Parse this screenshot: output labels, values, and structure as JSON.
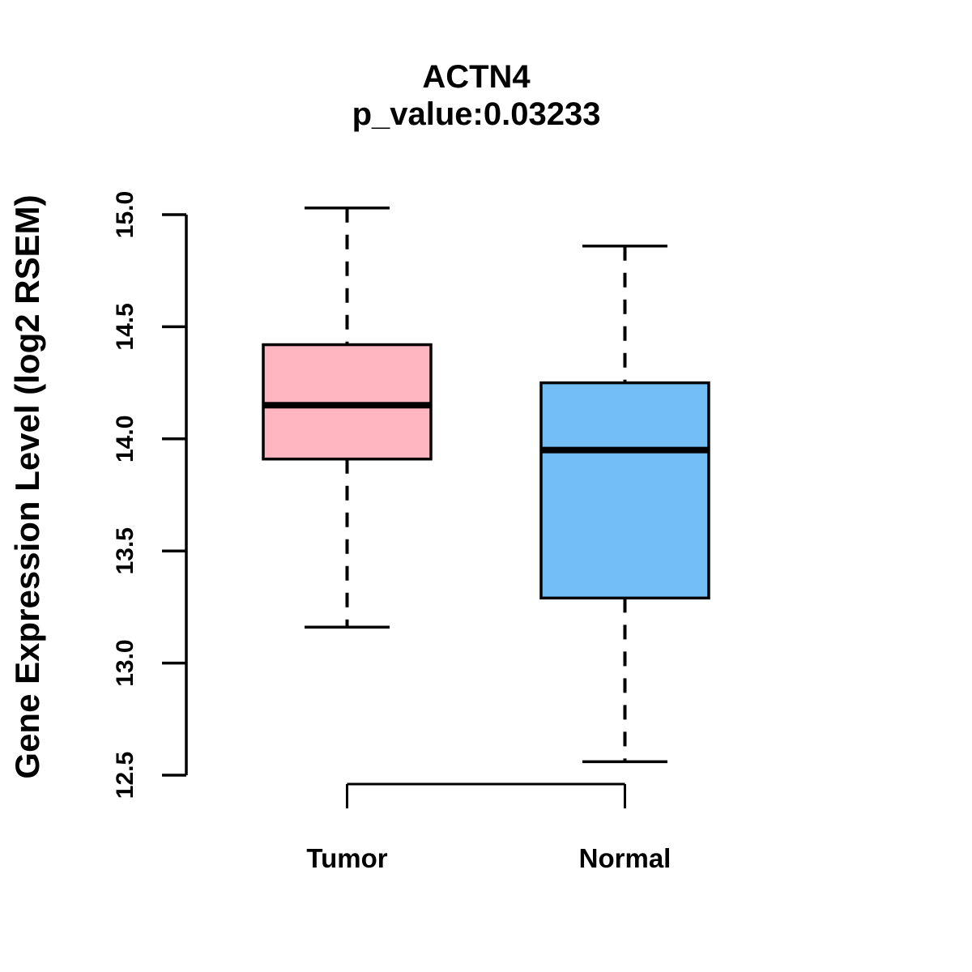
{
  "title": "ACTN4",
  "subtitle": "p_value:0.03233",
  "ylabel": "Gene Expression Level (log2 RSEM)",
  "colors": {
    "stroke": "#000000",
    "background": "#FFFFFF",
    "tumor_fill": "#FFB6C1",
    "normal_fill": "#74BEF6"
  },
  "chart_data": {
    "type": "boxplot",
    "title": "ACTN4",
    "subtitle": "p_value:0.03233",
    "ylabel": "Gene Expression Level (log2 RSEM)",
    "xlabel": "",
    "categories": [
      "Tumor",
      "Normal"
    ],
    "ylim": [
      12.5,
      15.0
    ],
    "yticks": [
      12.5,
      13.0,
      13.5,
      14.0,
      14.5,
      15.0
    ],
    "grid": false,
    "legend_position": "none",
    "series": [
      {
        "name": "Tumor",
        "color": "#FFB6C1",
        "whisker_low": 13.16,
        "q1": 13.91,
        "median": 14.15,
        "q3": 14.42,
        "whisker_high": 15.03
      },
      {
        "name": "Normal",
        "color": "#74BEF6",
        "whisker_low": 12.56,
        "q1": 13.29,
        "median": 13.95,
        "q3": 14.25,
        "whisker_high": 14.86
      }
    ]
  }
}
